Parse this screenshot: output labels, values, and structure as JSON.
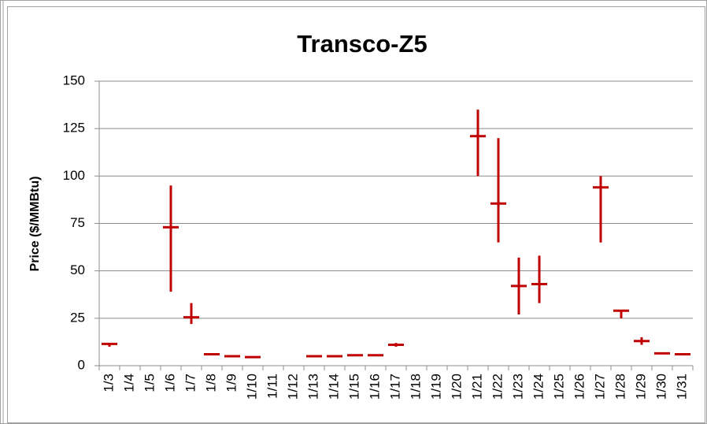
{
  "chart_data": {
    "type": "hilo",
    "title": "Transco-Z5",
    "y_label": "Price ($/MMBtu)",
    "categories": [
      "1/3",
      "1/4",
      "1/5",
      "1/6",
      "1/7",
      "1/8",
      "1/9",
      "1/10",
      "1/11",
      "1/12",
      "1/13",
      "1/14",
      "1/15",
      "1/16",
      "1/17",
      "1/18",
      "1/19",
      "1/20",
      "1/21",
      "1/22",
      "1/23",
      "1/24",
      "1/25",
      "1/26",
      "1/27",
      "1/28",
      "1/29",
      "1/30",
      "1/31"
    ],
    "highs": [
      12,
      null,
      null,
      95,
      33,
      6.5,
      5.2,
      4.8,
      null,
      null,
      5.2,
      5.2,
      5.8,
      5.8,
      12,
      null,
      null,
      null,
      135,
      120,
      57,
      58,
      null,
      null,
      100,
      29.5,
      15,
      6.8,
      6.3
    ],
    "lows": [
      10,
      null,
      null,
      39,
      22,
      5.5,
      4.8,
      4.3,
      null,
      null,
      4.8,
      4.8,
      5.2,
      5.2,
      10,
      null,
      null,
      null,
      100,
      65,
      27,
      33,
      null,
      null,
      65,
      25,
      11,
      6.2,
      5.8
    ],
    "values": [
      11.5,
      null,
      null,
      73,
      25.5,
      6,
      5,
      4.5,
      null,
      null,
      5,
      5,
      5.5,
      5.5,
      11,
      null,
      null,
      null,
      121,
      85.5,
      42,
      43,
      null,
      null,
      94,
      29,
      13,
      6.5,
      6
    ],
    "color": "#c00000",
    "ylim": [
      0,
      150
    ],
    "yticks": [
      0,
      25,
      50,
      75,
      100,
      125,
      150
    ],
    "grid": true
  }
}
